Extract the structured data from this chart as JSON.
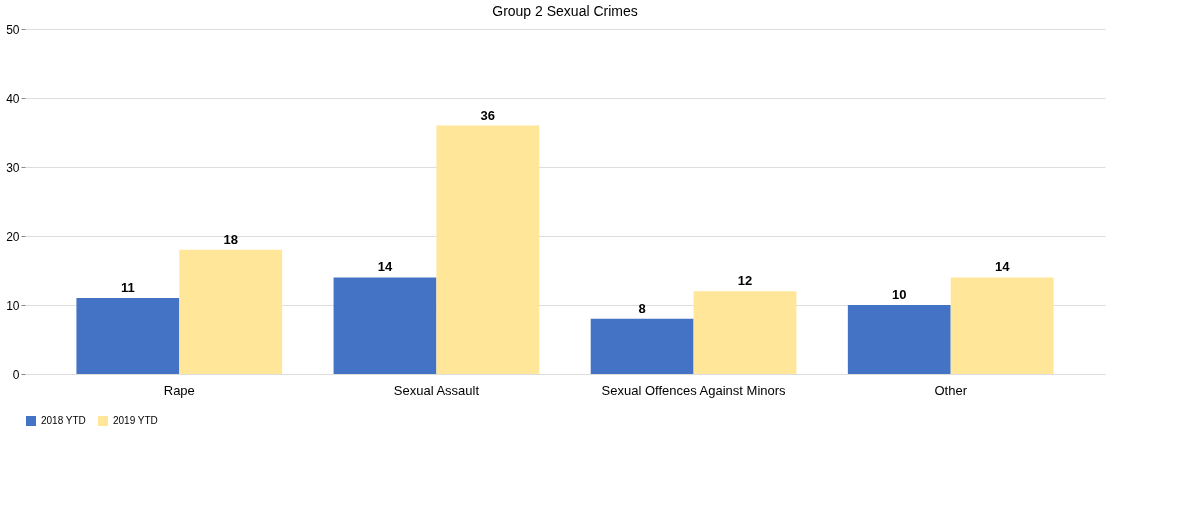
{
  "chart_data": {
    "type": "bar",
    "title": "Group 2 Sexual Crimes",
    "categories": [
      "Rape",
      "Sexual Assault",
      "Sexual Offences Against Minors",
      "Other"
    ],
    "series": [
      {
        "name": "2018 YTD",
        "color": "#4472c4",
        "values": [
          11,
          14,
          8,
          10
        ]
      },
      {
        "name": "2019 YTD",
        "color": "#ffe699",
        "values": [
          18,
          36,
          12,
          14
        ]
      }
    ],
    "ylim": [
      0,
      50
    ],
    "yticks": [
      0,
      10,
      20,
      30,
      40,
      50
    ],
    "grid": "y",
    "legend": "bottom",
    "data_labels": true
  }
}
